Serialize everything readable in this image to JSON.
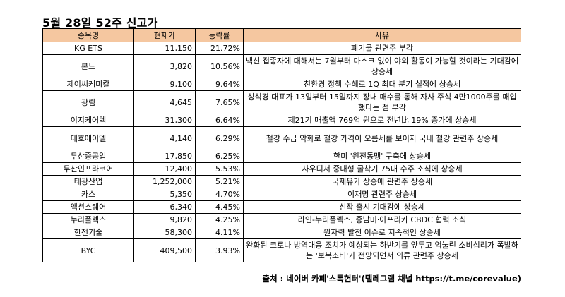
{
  "title": "5월 28일 52주 신고가",
  "headers": [
    "종목명",
    "현재가",
    "등락률",
    "사유"
  ],
  "header_bg": "#f5c7a0",
  "rows": [
    {
      "name": "KG ETS",
      "price": "11,150",
      "rate": "21.72%",
      "reason": "폐기물 관련주 부각",
      "lines": 1
    },
    {
      "name": "본느",
      "price": "3,820",
      "rate": "10.56%",
      "reason": "백신 접종자에 대해서는 7월부터 마스크 없이 야외 활동이 가능할 것이라는 기대감에 상승세",
      "lines": 2
    },
    {
      "name": "제이씨케미칼",
      "price": "9,100",
      "rate": "9.64%",
      "reason": "친환경 정책 수혜로 1Q 최대 분기 실적에 상승세",
      "lines": 1
    },
    {
      "name": "광림",
      "price": "4,645",
      "rate": "7.65%",
      "reason": "성석경 대표가 13일부터 15일까지 장내 매수를 통해 자사 주식 4만1000주를 매입했다는 점 부각",
      "lines": 2
    },
    {
      "name": "이지케어텍",
      "price": "31,300",
      "rate": "6.64%",
      "reason": "제21기 매출액 769억 원으로 전년比 19% 증가에 상승세",
      "lines": 1
    },
    {
      "name": "대호에이엘",
      "price": "4,140",
      "rate": "6.29%",
      "reason": "철강 수급 악화로 철강 가격이 오름세를 보이자 국내 철강 관련주 상승세",
      "lines": 2
    },
    {
      "name": "두산중공업",
      "price": "17,850",
      "rate": "6.25%",
      "reason": "한미 '원전동맹' 구축에 상승세",
      "lines": 1
    },
    {
      "name": "두산인프라코어",
      "price": "12,400",
      "rate": "5.53%",
      "reason": "사우디서 중대형 굴착기 75대 수주 소식에 상승세",
      "lines": 1
    },
    {
      "name": "태광산업",
      "price": "1,252,000",
      "rate": "5.21%",
      "reason": "국제유가 상승에 관련주 상승세",
      "lines": 1
    },
    {
      "name": "카스",
      "price": "5,350",
      "rate": "4.70%",
      "reason": "이재명 관련주 상승세",
      "lines": 1
    },
    {
      "name": "액션스퀘어",
      "price": "6,340",
      "rate": "4.45%",
      "reason": "신작 출시 기대감에 상승세",
      "lines": 1
    },
    {
      "name": "누리플렉스",
      "price": "9,820",
      "rate": "4.25%",
      "reason": "라인-누리플렉스, 중남미·아프리카 CBDC 협력 소식",
      "lines": 1
    },
    {
      "name": "한전기술",
      "price": "58,300",
      "rate": "4.11%",
      "reason": "원자력 발전 이슈로 지속적인 상승세",
      "lines": 1
    },
    {
      "name": "BYC",
      "price": "409,500",
      "rate": "3.93%",
      "reason": "완화된 코로나 방역대응 조치가 예상되는 하반기를 앞두고 억눌린 소비심리가 폭발하는 '보복소비'가 전망되면서 의류 관련주 상승세",
      "lines": 2
    }
  ],
  "source": "출처 : 네이버 카페'스톡헌터'(텔레그램 채널 https://t.me/corevalue)"
}
